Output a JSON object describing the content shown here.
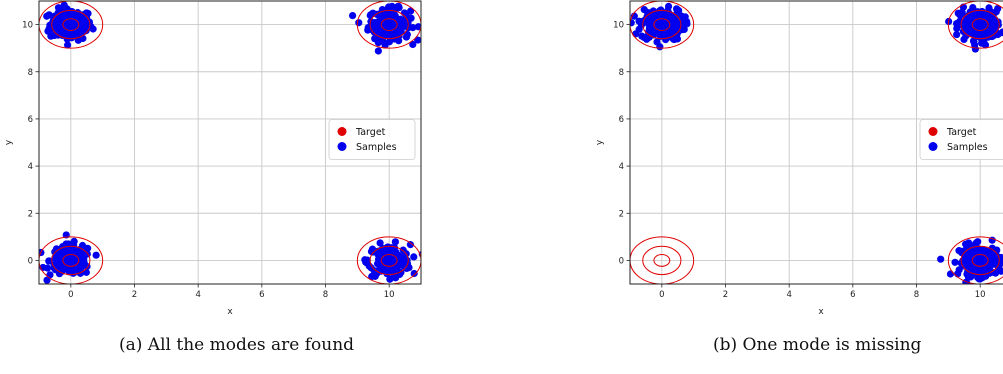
{
  "captions": {
    "a": "(a) All the modes are found",
    "b": "(b) One mode is missing"
  },
  "colors": {
    "target": "#e00000",
    "samples": "#0000ee",
    "grid": "#c8c8c8",
    "axis": "#222222"
  },
  "chart_data": [
    {
      "type": "scatter",
      "title": "",
      "xlabel": "x",
      "ylabel": "y",
      "xlim": [
        -1,
        11
      ],
      "ylim": [
        -1,
        11
      ],
      "xticks": [
        0,
        2,
        4,
        6,
        8,
        10
      ],
      "yticks": [
        0,
        2,
        4,
        6,
        8,
        10
      ],
      "grid": true,
      "legend": {
        "placement": "center-right",
        "entries": [
          "Target",
          "Samples"
        ]
      },
      "target_modes": [
        {
          "x": 0,
          "y": 0
        },
        {
          "x": 0,
          "y": 10
        },
        {
          "x": 10,
          "y": 0
        },
        {
          "x": 10,
          "y": 10
        }
      ],
      "target_contour_radii": [
        0.25,
        0.6,
        1.0
      ],
      "series": [
        {
          "name": "Samples",
          "clusters": [
            {
              "x": 0,
              "y": 10,
              "n": 160,
              "spread": 0.33
            },
            {
              "x": 10,
              "y": 10,
              "n": 160,
              "spread": 0.33
            },
            {
              "x": 0,
              "y": 0,
              "n": 160,
              "spread": 0.33
            },
            {
              "x": 10,
              "y": 0,
              "n": 160,
              "spread": 0.33
            }
          ]
        }
      ]
    },
    {
      "type": "scatter",
      "title": "",
      "xlabel": "x",
      "ylabel": "y",
      "xlim": [
        -1,
        11
      ],
      "ylim": [
        -1,
        11
      ],
      "xticks": [
        0,
        2,
        4,
        6,
        8,
        10
      ],
      "yticks": [
        0,
        2,
        4,
        6,
        8,
        10
      ],
      "grid": true,
      "legend": {
        "placement": "center-right",
        "entries": [
          "Target",
          "Samples"
        ]
      },
      "target_modes": [
        {
          "x": 0,
          "y": 0
        },
        {
          "x": 0,
          "y": 10
        },
        {
          "x": 10,
          "y": 0
        },
        {
          "x": 10,
          "y": 10
        }
      ],
      "target_contour_radii": [
        0.25,
        0.6,
        1.0
      ],
      "series": [
        {
          "name": "Samples",
          "clusters": [
            {
              "x": 0,
              "y": 10,
              "n": 200,
              "spread": 0.33
            },
            {
              "x": 10,
              "y": 10,
              "n": 200,
              "spread": 0.33
            },
            {
              "x": 10,
              "y": 0,
              "n": 200,
              "spread": 0.33
            }
          ]
        }
      ]
    }
  ]
}
